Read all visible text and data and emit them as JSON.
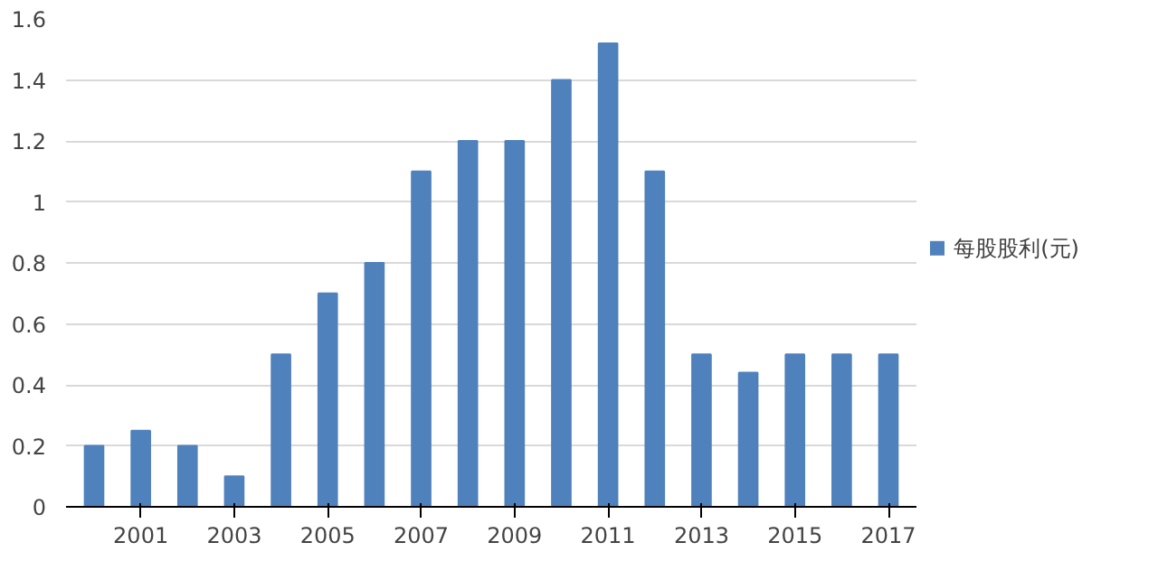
{
  "chart_data": {
    "type": "bar",
    "categories": [
      null,
      "2001",
      null,
      "2003",
      null,
      "2005",
      null,
      "2007",
      null,
      "2009",
      null,
      "2011",
      null,
      "2013",
      null,
      "2015",
      null,
      "2017"
    ],
    "series": [
      {
        "name": "每股股利(元)",
        "color": "#4f81bd",
        "values": [
          0.2,
          0.25,
          0.2,
          0.1,
          0.5,
          0.7,
          0.8,
          1.1,
          1.2,
          1.2,
          1.4,
          1.52,
          1.1,
          0.5,
          0.44,
          0.5,
          0.5,
          0.5
        ]
      }
    ],
    "ylim": [
      0,
      1.6
    ],
    "yticks": [
      0,
      0.2,
      0.4,
      0.6,
      0.8,
      1,
      1.2,
      1.4,
      1.6
    ],
    "grid": "y",
    "legend": "right"
  }
}
